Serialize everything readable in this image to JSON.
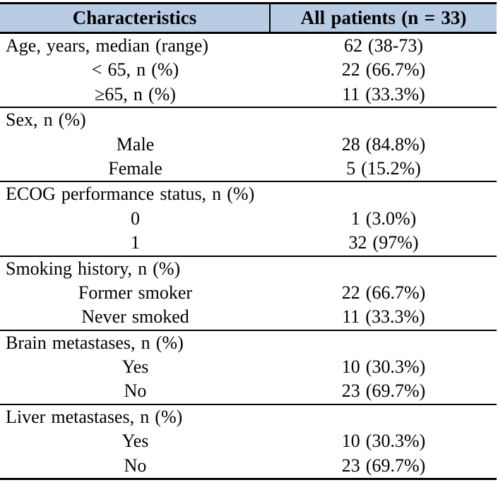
{
  "table": {
    "title_semantic": "Patient baseline characteristics",
    "header_bg_color": "#b8cce4",
    "border_color": "#000000",
    "header": {
      "characteristics": "Characteristics",
      "all_patients": "All patients (n = 33)"
    },
    "sections": [
      {
        "rows": [
          {
            "label": "Age, years, median (range)",
            "value": "62 (38-73)"
          },
          {
            "label": "< 65, n (%)",
            "value": "22 (66.7%)"
          },
          {
            "label": "≥65, n (%)",
            "value": "11 (33.3%)"
          }
        ]
      },
      {
        "rows": [
          {
            "label": "Sex, n (%)",
            "value": ""
          },
          {
            "label": "Male",
            "value": "28 (84.8%)"
          },
          {
            "label": "Female",
            "value": "5 (15.2%)"
          }
        ]
      },
      {
        "rows": [
          {
            "label": "ECOG performance status, n (%)",
            "value": ""
          },
          {
            "label": "0",
            "value": "1 (3.0%)"
          },
          {
            "label": "1",
            "value": "32 (97%)"
          }
        ]
      },
      {
        "rows": [
          {
            "label": "Smoking history, n (%)",
            "value": ""
          },
          {
            "label": "Former smoker",
            "value": "22 (66.7%)"
          },
          {
            "label": "Never smoked",
            "value": "11 (33.3%)"
          }
        ]
      },
      {
        "rows": [
          {
            "label": "Brain metastases, n (%)",
            "value": ""
          },
          {
            "label": "Yes",
            "value": "10 (30.3%)"
          },
          {
            "label": "No",
            "value": "23 (69.7%)"
          }
        ]
      },
      {
        "rows": [
          {
            "label": "Liver metastases, n (%)",
            "value": ""
          },
          {
            "label": "Yes",
            "value": "10 (30.3%)"
          },
          {
            "label": "No",
            "value": "23 (69.7%)"
          }
        ]
      }
    ]
  }
}
